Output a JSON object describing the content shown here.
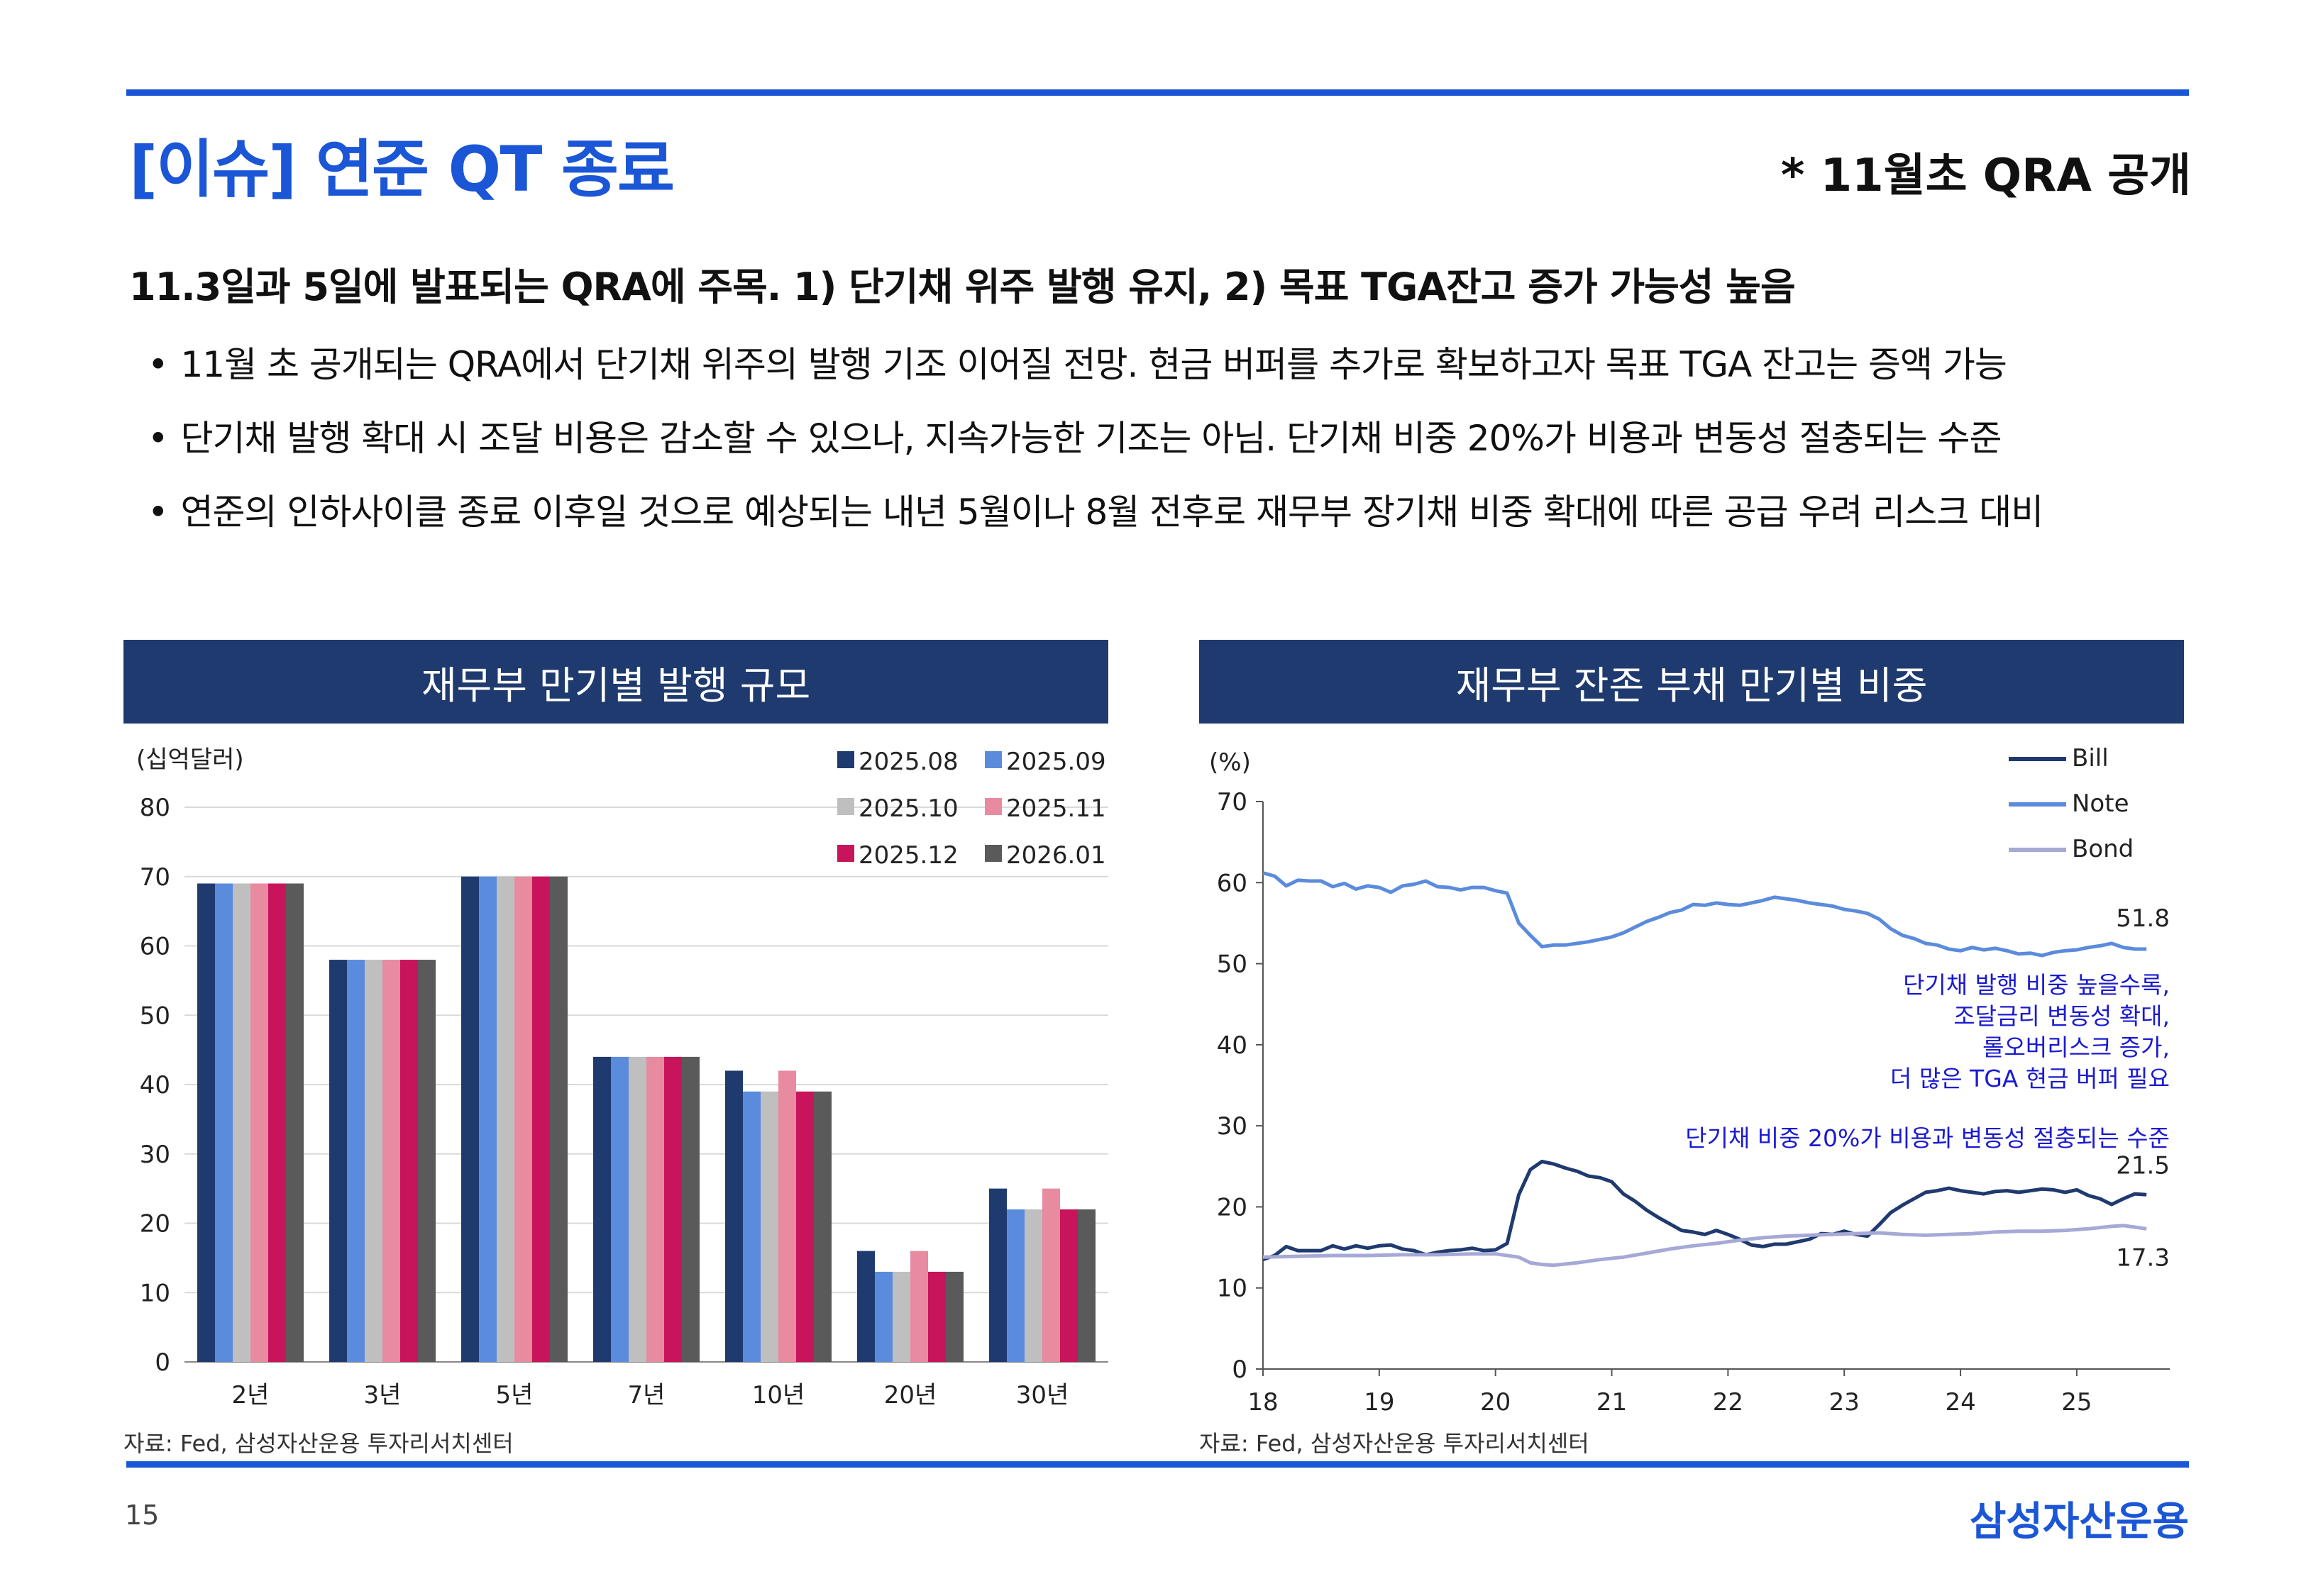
{
  "header": {
    "title": "[이슈] 연준 QT 종료",
    "note": "* 11월초 QRA 공개"
  },
  "headline": "11.3일과 5일에 발표되는 QRA에 주목. 1) 단기채 위주 발행 유지, 2) 목표 TGA잔고 증가 가능성 높음",
  "bullets": [
    "11월 초 공개되는 QRA에서 단기채 위주의 발행 기조 이어질 전망. 현금 버퍼를 추가로 확보하고자 목표 TGA 잔고는 증액 가능",
    "단기채 발행 확대 시 조달 비용은 감소할 수 있으나, 지속가능한 기조는 아님. 단기채 비중 20%가 비용과 변동성 절충되는 수준",
    "연준의 인하사이클 종료 이후일 것으로 예상되는 내년 5월이나 8월 전후로 재무부 장기채 비중 확대에 따른 공급 우려 리스크 대비"
  ],
  "footer": {
    "page": "15",
    "brand": "삼성자산운용"
  },
  "chart_data": [
    {
      "type": "bar",
      "title": "재무부 만기별 발행 규모",
      "unit": "(십억달러)",
      "source": "자료: Fed, 삼성자산운용 투자리서치센터",
      "ylim": [
        0,
        80
      ],
      "yticks": [
        "0",
        "10",
        "20",
        "30",
        "40",
        "50",
        "60",
        "70",
        "80"
      ],
      "categories": [
        "2년",
        "3년",
        "5년",
        "7년",
        "10년",
        "20년",
        "30년"
      ],
      "series": [
        {
          "name": "2025.08",
          "color": "#1f3a6e",
          "values": [
            69,
            58,
            70,
            44,
            42,
            16,
            25
          ]
        },
        {
          "name": "2025.09",
          "color": "#5b8bdc",
          "values": [
            69,
            58,
            70,
            44,
            39,
            13,
            22
          ]
        },
        {
          "name": "2025.10",
          "color": "#bfbfbf",
          "values": [
            69,
            58,
            70,
            44,
            39,
            13,
            22
          ]
        },
        {
          "name": "2025.11",
          "color": "#e88aa0",
          "values": [
            69,
            58,
            70,
            44,
            42,
            16,
            25
          ]
        },
        {
          "name": "2025.12",
          "color": "#c8145a",
          "values": [
            69,
            58,
            70,
            44,
            39,
            13,
            22
          ]
        },
        {
          "name": "2026.01",
          "color": "#5a5a5a",
          "values": [
            69,
            58,
            70,
            44,
            39,
            13,
            22
          ]
        }
      ]
    },
    {
      "type": "line",
      "title": "재무부 잔존 부채 만기별 비중",
      "unit": "(%)",
      "source": "자료: Fed, 삼성자산운용 투자리서치센터",
      "ylim": [
        0,
        70
      ],
      "yticks": [
        "0",
        "10",
        "20",
        "30",
        "40",
        "50",
        "60",
        "70"
      ],
      "xlim": [
        18,
        25.8
      ],
      "xticks": [
        "18",
        "19",
        "20",
        "21",
        "22",
        "23",
        "24",
        "25"
      ],
      "series": [
        {
          "name": "Bill",
          "color": "#1f3a6e",
          "end_label": "21.5",
          "points": [
            [
              18,
              13.5
            ],
            [
              18.1,
              14
            ],
            [
              18.2,
              15.1
            ],
            [
              18.3,
              14.6
            ],
            [
              18.5,
              14.6
            ],
            [
              18.6,
              15.2
            ],
            [
              18.7,
              14.8
            ],
            [
              18.8,
              15.2
            ],
            [
              18.9,
              14.9
            ],
            [
              19.0,
              15.2
            ],
            [
              19.1,
              15.3
            ],
            [
              19.2,
              14.8
            ],
            [
              19.3,
              14.6
            ],
            [
              19.4,
              14.1
            ],
            [
              19.5,
              14.4
            ],
            [
              19.6,
              14.6
            ],
            [
              19.7,
              14.7
            ],
            [
              19.8,
              14.9
            ],
            [
              19.9,
              14.6
            ],
            [
              20.0,
              14.7
            ],
            [
              20.1,
              15.5
            ],
            [
              20.2,
              21.5
            ],
            [
              20.3,
              24.6
            ],
            [
              20.4,
              25.6
            ],
            [
              20.5,
              25.3
            ],
            [
              20.6,
              24.8
            ],
            [
              20.7,
              24.4
            ],
            [
              20.8,
              23.8
            ],
            [
              20.9,
              23.6
            ],
            [
              21.0,
              23.1
            ],
            [
              21.1,
              21.6
            ],
            [
              21.2,
              20.7
            ],
            [
              21.3,
              19.6
            ],
            [
              21.4,
              18.7
            ],
            [
              21.5,
              17.9
            ],
            [
              21.6,
              17.1
            ],
            [
              21.7,
              16.9
            ],
            [
              21.8,
              16.6
            ],
            [
              21.9,
              17.1
            ],
            [
              22.0,
              16.6
            ],
            [
              22.1,
              16.0
            ],
            [
              22.2,
              15.3
            ],
            [
              22.3,
              15.1
            ],
            [
              22.4,
              15.4
            ],
            [
              22.5,
              15.4
            ],
            [
              22.6,
              15.7
            ],
            [
              22.7,
              16.0
            ],
            [
              22.8,
              16.7
            ],
            [
              22.9,
              16.6
            ],
            [
              23.0,
              17.0
            ],
            [
              23.1,
              16.6
            ],
            [
              23.2,
              16.4
            ],
            [
              23.3,
              17.8
            ],
            [
              23.4,
              19.3
            ],
            [
              23.5,
              20.2
            ],
            [
              23.6,
              21.0
            ],
            [
              23.7,
              21.8
            ],
            [
              23.8,
              22.0
            ],
            [
              23.9,
              22.3
            ],
            [
              24.0,
              22.0
            ],
            [
              24.1,
              21.8
            ],
            [
              24.2,
              21.6
            ],
            [
              24.3,
              21.9
            ],
            [
              24.4,
              22.0
            ],
            [
              24.5,
              21.8
            ],
            [
              24.6,
              22.0
            ],
            [
              24.7,
              22.2
            ],
            [
              24.8,
              22.1
            ],
            [
              24.9,
              21.8
            ],
            [
              25.0,
              22.1
            ],
            [
              25.1,
              21.4
            ],
            [
              25.2,
              21.0
            ],
            [
              25.3,
              20.3
            ],
            [
              25.4,
              21.0
            ],
            [
              25.5,
              21.6
            ],
            [
              25.6,
              21.5
            ]
          ]
        },
        {
          "name": "Note",
          "color": "#5b8bdc",
          "end_label": "51.8",
          "points": [
            [
              18,
              61.2
            ],
            [
              18.1,
              60.8
            ],
            [
              18.2,
              59.6
            ],
            [
              18.3,
              60.3
            ],
            [
              18.4,
              60.2
            ],
            [
              18.5,
              60.2
            ],
            [
              18.6,
              59.5
            ],
            [
              18.7,
              59.9
            ],
            [
              18.8,
              59.2
            ],
            [
              18.9,
              59.6
            ],
            [
              19.0,
              59.4
            ],
            [
              19.1,
              58.8
            ],
            [
              19.2,
              59.6
            ],
            [
              19.3,
              59.8
            ],
            [
              19.4,
              60.2
            ],
            [
              19.5,
              59.5
            ],
            [
              19.6,
              59.4
            ],
            [
              19.7,
              59.1
            ],
            [
              19.8,
              59.4
            ],
            [
              19.9,
              59.4
            ],
            [
              20.0,
              59.0
            ],
            [
              20.1,
              58.7
            ],
            [
              20.2,
              55.0
            ],
            [
              20.3,
              53.5
            ],
            [
              20.4,
              52.1
            ],
            [
              20.5,
              52.3
            ],
            [
              20.6,
              52.3
            ],
            [
              20.7,
              52.5
            ],
            [
              20.8,
              52.7
            ],
            [
              20.9,
              53.0
            ],
            [
              21.0,
              53.3
            ],
            [
              21.1,
              53.8
            ],
            [
              21.2,
              54.5
            ],
            [
              21.3,
              55.2
            ],
            [
              21.4,
              55.7
            ],
            [
              21.5,
              56.3
            ],
            [
              21.6,
              56.6
            ],
            [
              21.7,
              57.3
            ],
            [
              21.8,
              57.2
            ],
            [
              21.9,
              57.5
            ],
            [
              22.0,
              57.3
            ],
            [
              22.1,
              57.2
            ],
            [
              22.2,
              57.5
            ],
            [
              22.3,
              57.8
            ],
            [
              22.4,
              58.2
            ],
            [
              22.5,
              58.0
            ],
            [
              22.6,
              57.8
            ],
            [
              22.7,
              57.5
            ],
            [
              22.8,
              57.3
            ],
            [
              22.9,
              57.1
            ],
            [
              23.0,
              56.7
            ],
            [
              23.1,
              56.5
            ],
            [
              23.2,
              56.2
            ],
            [
              23.3,
              55.5
            ],
            [
              23.4,
              54.3
            ],
            [
              23.5,
              53.5
            ],
            [
              23.6,
              53.1
            ],
            [
              23.7,
              52.5
            ],
            [
              23.8,
              52.3
            ],
            [
              23.9,
              51.8
            ],
            [
              24.0,
              51.6
            ],
            [
              24.1,
              52.0
            ],
            [
              24.2,
              51.7
            ],
            [
              24.3,
              51.9
            ],
            [
              24.4,
              51.6
            ],
            [
              24.5,
              51.2
            ],
            [
              24.6,
              51.3
            ],
            [
              24.7,
              51.0
            ],
            [
              24.8,
              51.4
            ],
            [
              24.9,
              51.6
            ],
            [
              25.0,
              51.7
            ],
            [
              25.1,
              52.0
            ],
            [
              25.2,
              52.2
            ],
            [
              25.3,
              52.5
            ],
            [
              25.4,
              52.0
            ],
            [
              25.5,
              51.8
            ],
            [
              25.6,
              51.8
            ]
          ]
        },
        {
          "name": "Bond",
          "color": "#a6a8d6",
          "end_label": "17.3",
          "points": [
            [
              18,
              13.8
            ],
            [
              18.3,
              13.9
            ],
            [
              18.6,
              14.0
            ],
            [
              18.9,
              14.0
            ],
            [
              19.2,
              14.1
            ],
            [
              19.5,
              14.1
            ],
            [
              19.8,
              14.2
            ],
            [
              20.0,
              14.2
            ],
            [
              20.2,
              13.8
            ],
            [
              20.3,
              13.1
            ],
            [
              20.4,
              12.9
            ],
            [
              20.5,
              12.8
            ],
            [
              20.7,
              13.1
            ],
            [
              20.9,
              13.5
            ],
            [
              21.1,
              13.8
            ],
            [
              21.3,
              14.3
            ],
            [
              21.5,
              14.8
            ],
            [
              21.7,
              15.2
            ],
            [
              21.9,
              15.5
            ],
            [
              22.1,
              15.9
            ],
            [
              22.3,
              16.2
            ],
            [
              22.5,
              16.4
            ],
            [
              22.7,
              16.5
            ],
            [
              22.9,
              16.6
            ],
            [
              23.1,
              16.7
            ],
            [
              23.3,
              16.8
            ],
            [
              23.5,
              16.6
            ],
            [
              23.7,
              16.5
            ],
            [
              23.9,
              16.6
            ],
            [
              24.1,
              16.7
            ],
            [
              24.3,
              16.9
            ],
            [
              24.5,
              17.0
            ],
            [
              24.7,
              17.0
            ],
            [
              24.9,
              17.1
            ],
            [
              25.1,
              17.3
            ],
            [
              25.3,
              17.6
            ],
            [
              25.4,
              17.7
            ],
            [
              25.5,
              17.5
            ],
            [
              25.6,
              17.3
            ]
          ]
        }
      ],
      "annotations": [
        "단기채 발행 비중 높을수록,",
        "조달금리 변동성 확대,",
        "롤오버리스크 증가,",
        "더 많은 TGA 현금 버퍼 필요"
      ],
      "annotation2": "단기채 비중 20%가 비용과 변동성 절충되는 수준"
    }
  ]
}
